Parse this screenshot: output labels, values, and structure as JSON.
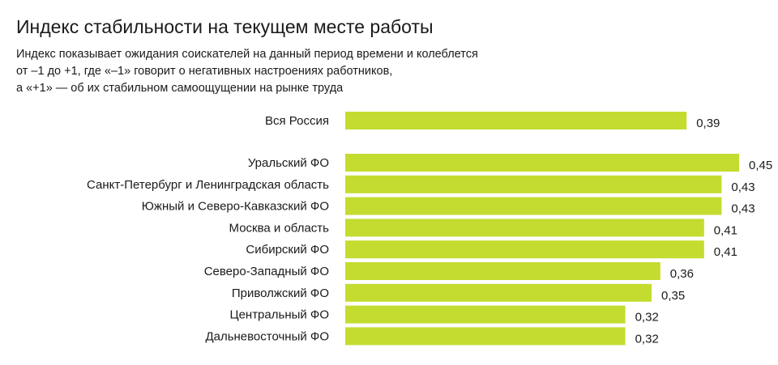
{
  "header": {
    "title": "Индекс стабильности на текущем месте работы",
    "subtitle_lines": [
      "Индекс показывает ожидания соискателей на данный период времени и колеблется",
      "от –1 до +1, где «–1» говорит о негативных настроениях работников,",
      "а «+1» — об их стабильном самоощущении на рынке труда"
    ]
  },
  "colors": {
    "bar": "#c4dc2f",
    "text": "#1a1a1a"
  },
  "chart_data": {
    "type": "bar",
    "orientation": "horizontal",
    "title": "Индекс стабильности на текущем месте работы",
    "xlabel": "",
    "ylabel": "",
    "xlim": [
      0,
      0.45
    ],
    "grid": false,
    "categories": [
      "Вся Россия",
      "Уральский ФО",
      "Санкт-Петербург и Ленинградская область",
      "Южный и Северо-Кавказский ФО",
      "Москва и область",
      "Сибирский ФО",
      "Северо-Западный ФО",
      "Приволжский ФО",
      "Центральный ФО",
      "Дальневосточный ФО"
    ],
    "values": [
      0.39,
      0.45,
      0.43,
      0.43,
      0.41,
      0.41,
      0.36,
      0.35,
      0.32,
      0.32
    ],
    "value_labels": [
      "0,39",
      "0,45",
      "0,43",
      "0,43",
      "0,41",
      "0,41",
      "0,36",
      "0,35",
      "0,32",
      "0,32"
    ]
  }
}
